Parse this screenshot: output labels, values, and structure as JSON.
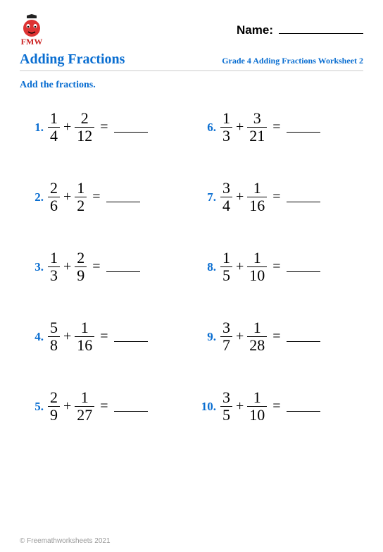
{
  "logo_text": "FMW",
  "name_label": "Name:",
  "title": "Adding Fractions",
  "subtitle": "Grade 4 Adding Fractions Worksheet 2",
  "instruction": "Add the fractions.",
  "colors": {
    "accent": "#0a6ed1",
    "logo_red": "#c22",
    "text": "#000000",
    "footer": "#999999",
    "background": "#ffffff"
  },
  "fonts": {
    "handwriting": "Comic Sans MS",
    "math": "Times New Roman",
    "title_size_pt": 20,
    "problem_number_size_pt": 17,
    "fraction_size_pt": 22
  },
  "layout": {
    "columns": 2,
    "rows": 5,
    "column_order": "down-then-across"
  },
  "problems": [
    {
      "n": "1.",
      "a_num": "1",
      "a_den": "4",
      "b_num": "2",
      "b_den": "12"
    },
    {
      "n": "6.",
      "a_num": "1",
      "a_den": "3",
      "b_num": "3",
      "b_den": "21"
    },
    {
      "n": "2.",
      "a_num": "2",
      "a_den": "6",
      "b_num": "1",
      "b_den": "2"
    },
    {
      "n": "7.",
      "a_num": "3",
      "a_den": "4",
      "b_num": "1",
      "b_den": "16"
    },
    {
      "n": "3.",
      "a_num": "1",
      "a_den": "3",
      "b_num": "2",
      "b_den": "9"
    },
    {
      "n": "8.",
      "a_num": "1",
      "a_den": "5",
      "b_num": "1",
      "b_den": "10"
    },
    {
      "n": "4.",
      "a_num": "5",
      "a_den": "8",
      "b_num": "1",
      "b_den": "16"
    },
    {
      "n": "9.",
      "a_num": "3",
      "a_den": "7",
      "b_num": "1",
      "b_den": "28"
    },
    {
      "n": "5.",
      "a_num": "2",
      "a_den": "9",
      "b_num": "1",
      "b_den": "27"
    },
    {
      "n": "10.",
      "a_num": "3",
      "a_den": "5",
      "b_num": "1",
      "b_den": "10"
    }
  ],
  "operator": "+",
  "equals": "=",
  "footer": "© Freemathworksheets 2021"
}
